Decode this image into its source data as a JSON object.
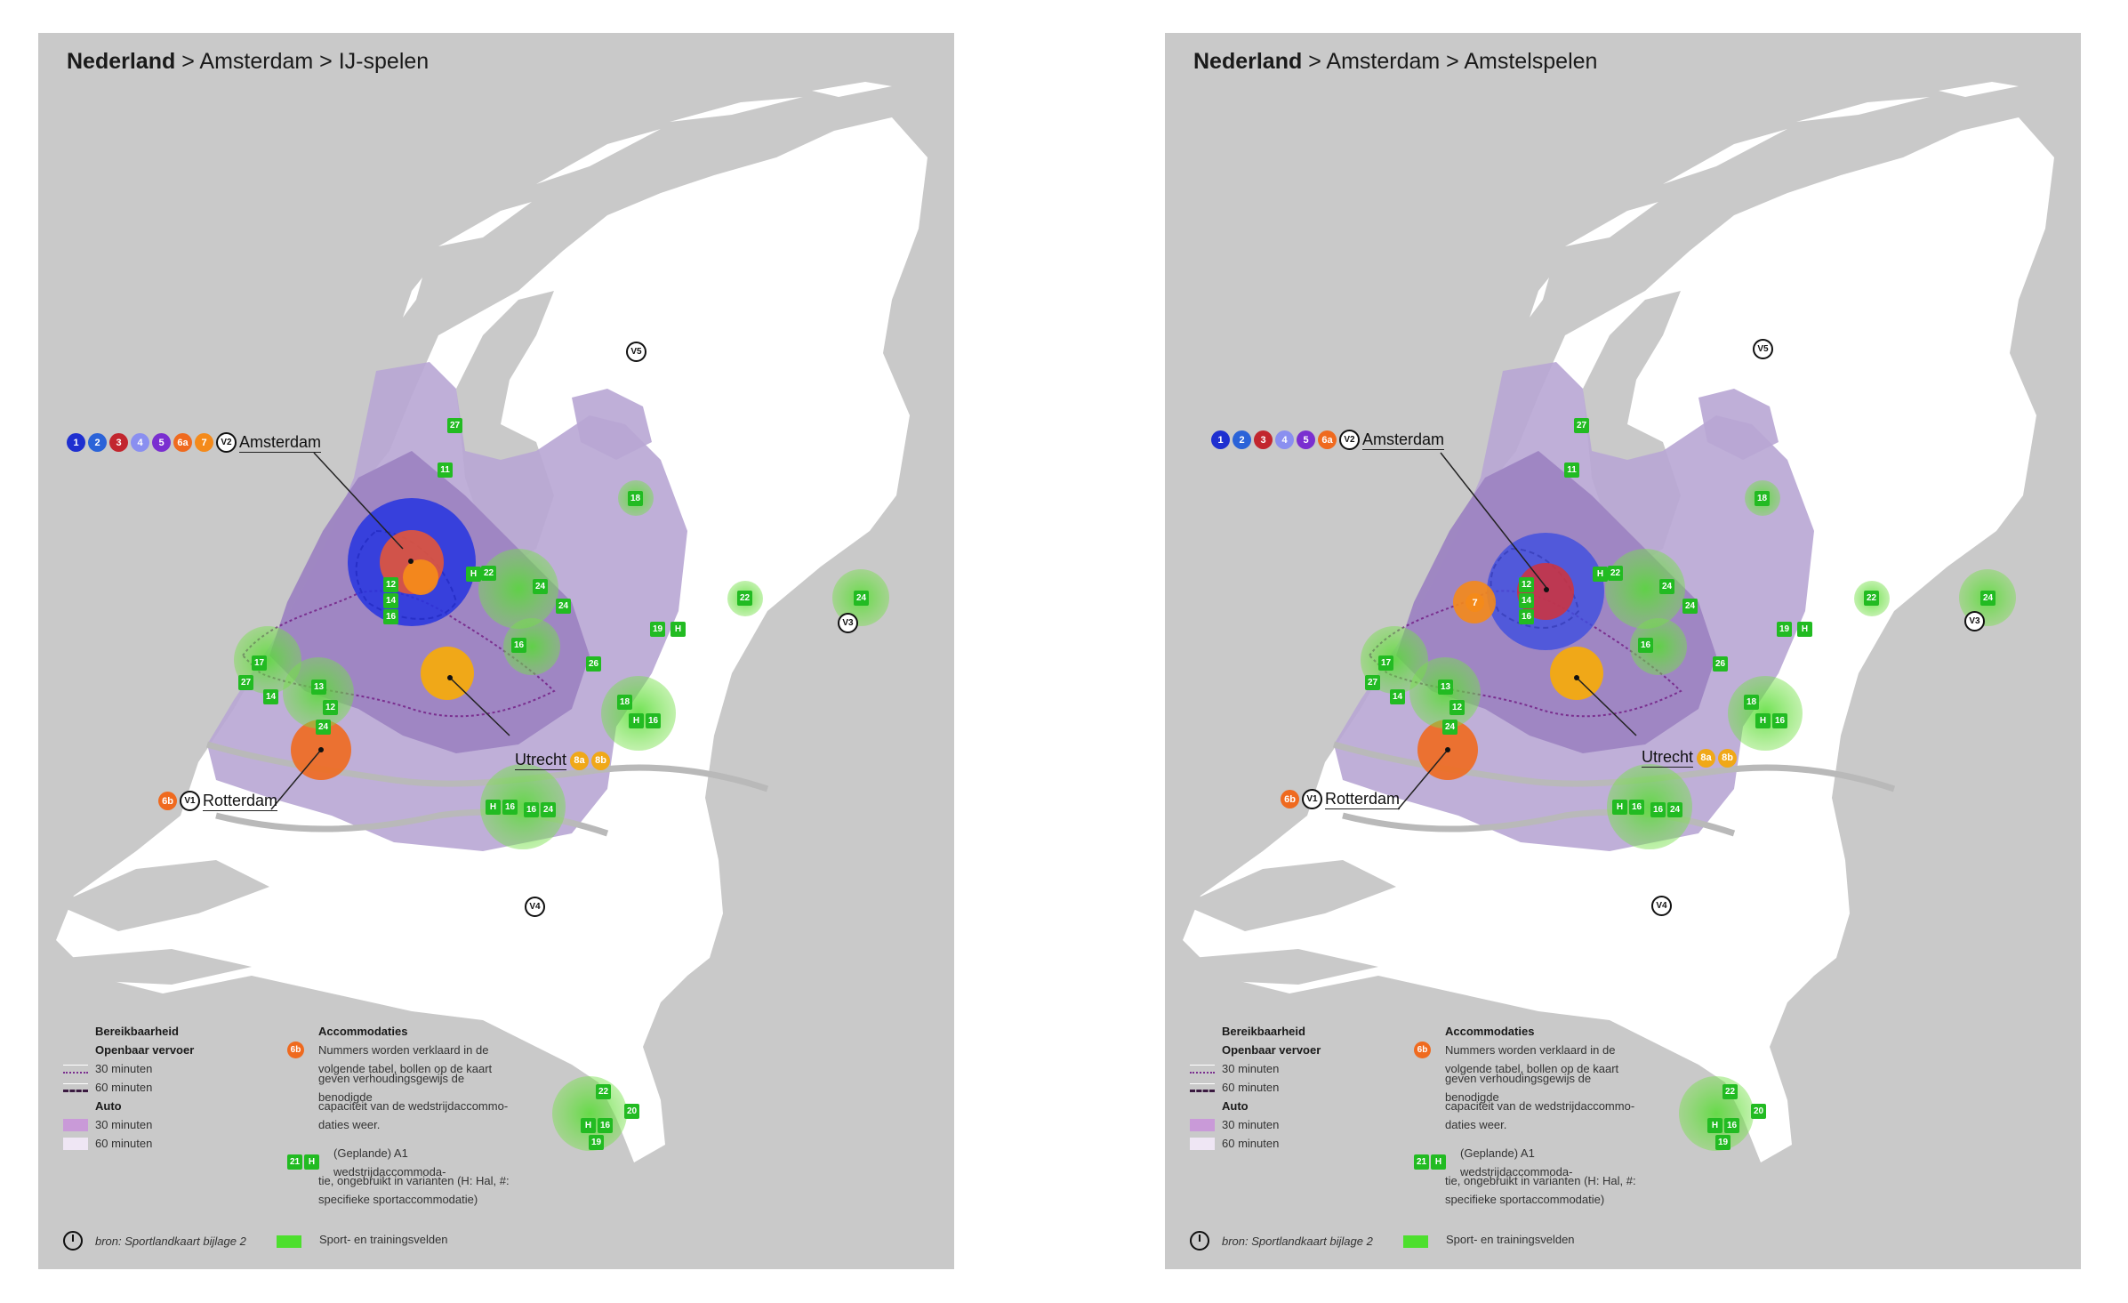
{
  "left": {
    "breadcrumb": {
      "country": "Nederland",
      "sep1": ">",
      "city": "Amsterdam",
      "sep2": ">",
      "variant": "IJ-spelen"
    },
    "markers": {
      "amsterdam": {
        "dots": [
          "1",
          "2",
          "3",
          "4",
          "5",
          "6a",
          "7"
        ],
        "v": "V2",
        "city": "Amsterdam"
      },
      "utrecht": {
        "dots": [
          "8a",
          "8b"
        ],
        "city": "Utrecht"
      },
      "rotterdam": {
        "dots": [
          "6b"
        ],
        "v": "V1",
        "city": "Rotterdam"
      },
      "v3": "V3",
      "v4": "V4",
      "v5": "V5"
    },
    "venues": [
      "27",
      "11",
      "18",
      "22",
      "24",
      "24",
      "16",
      "19",
      "22",
      "24",
      "26",
      "17",
      "27",
      "14",
      "13",
      "12",
      "24",
      "12",
      "14",
      "16",
      "H",
      "18",
      "H",
      "16",
      "H",
      "16",
      "16",
      "24",
      "22",
      "20",
      "H",
      "16",
      "19",
      "H"
    ]
  },
  "right": {
    "breadcrumb": {
      "country": "Nederland",
      "sep1": ">",
      "city": "Amsterdam",
      "sep2": ">",
      "variant": "Amstelspelen"
    },
    "markers": {
      "amsterdam": {
        "dots": [
          "1",
          "2",
          "3",
          "4",
          "5",
          "6a"
        ],
        "v": "V2",
        "city": "Amsterdam"
      },
      "utrecht": {
        "dots": [
          "8a",
          "8b"
        ],
        "city": "Utrecht"
      },
      "rotterdam": {
        "dots": [
          "6b"
        ],
        "v": "V1",
        "city": "Rotterdam"
      },
      "extra_dot": "7",
      "v3": "V3",
      "v4": "V4",
      "v5": "V5"
    },
    "venues": [
      "27",
      "11",
      "18",
      "22",
      "24",
      "24",
      "16",
      "19",
      "22",
      "24",
      "26",
      "17",
      "27",
      "14",
      "13",
      "12",
      "24",
      "12",
      "14",
      "16",
      "H",
      "18",
      "H",
      "16",
      "H",
      "16",
      "16",
      "24",
      "22",
      "20",
      "H",
      "16",
      "19",
      "H"
    ]
  },
  "legend": {
    "reach_title": "Bereikbaarheid",
    "ov_title": "Openbaar vervoer",
    "ov_30": "30 minuten",
    "ov_60": "60 minuten",
    "auto_title": "Auto",
    "auto_30": "30 minuten",
    "auto_60": "60 minuten",
    "acc_title": "Accommodaties",
    "acc_dot": "6b",
    "acc_text_1": "Nummers worden verklaard in de",
    "acc_text_2": "volgende tabel, bollen op de kaart",
    "acc_text_3": "geven verhoudingsgewijs de benodigde",
    "acc_text_4": "capaciteit van de wedstrijdaccommo-",
    "acc_text_5": "daties weer.",
    "a1_badge1": "21",
    "a1_badge2": "H",
    "a1_text_1": "(Geplande) A1 wedstrijdaccommoda-",
    "a1_text_2": "tie, ongebruikt in varianten (H: Hal, #:",
    "a1_text_3": "specifieke sportaccommodatie)",
    "source": "bron: Sportlandkaart bijlage 2",
    "fields": "Sport- en trainingsvelden"
  },
  "colors": {
    "bg": "#c9c9c9",
    "land": "#ffffff",
    "water": "#b9b9b9",
    "reach30": "#9d84c2",
    "reach60": "#b8a6d4",
    "venue": "#22bb22",
    "field_dot": "#4ddf2e",
    "ov_line": "#7a2f8f",
    "acc_blue1": "#1e2fd0",
    "acc_blue2": "#2b63d8",
    "acc_red": "#c2262e",
    "acc_lav": "#8a8ff0",
    "acc_purple": "#7a2fd0",
    "acc_orange": "#ef6a1f",
    "acc_orange2": "#f48a1a",
    "acc_yellow": "#f0a818"
  }
}
